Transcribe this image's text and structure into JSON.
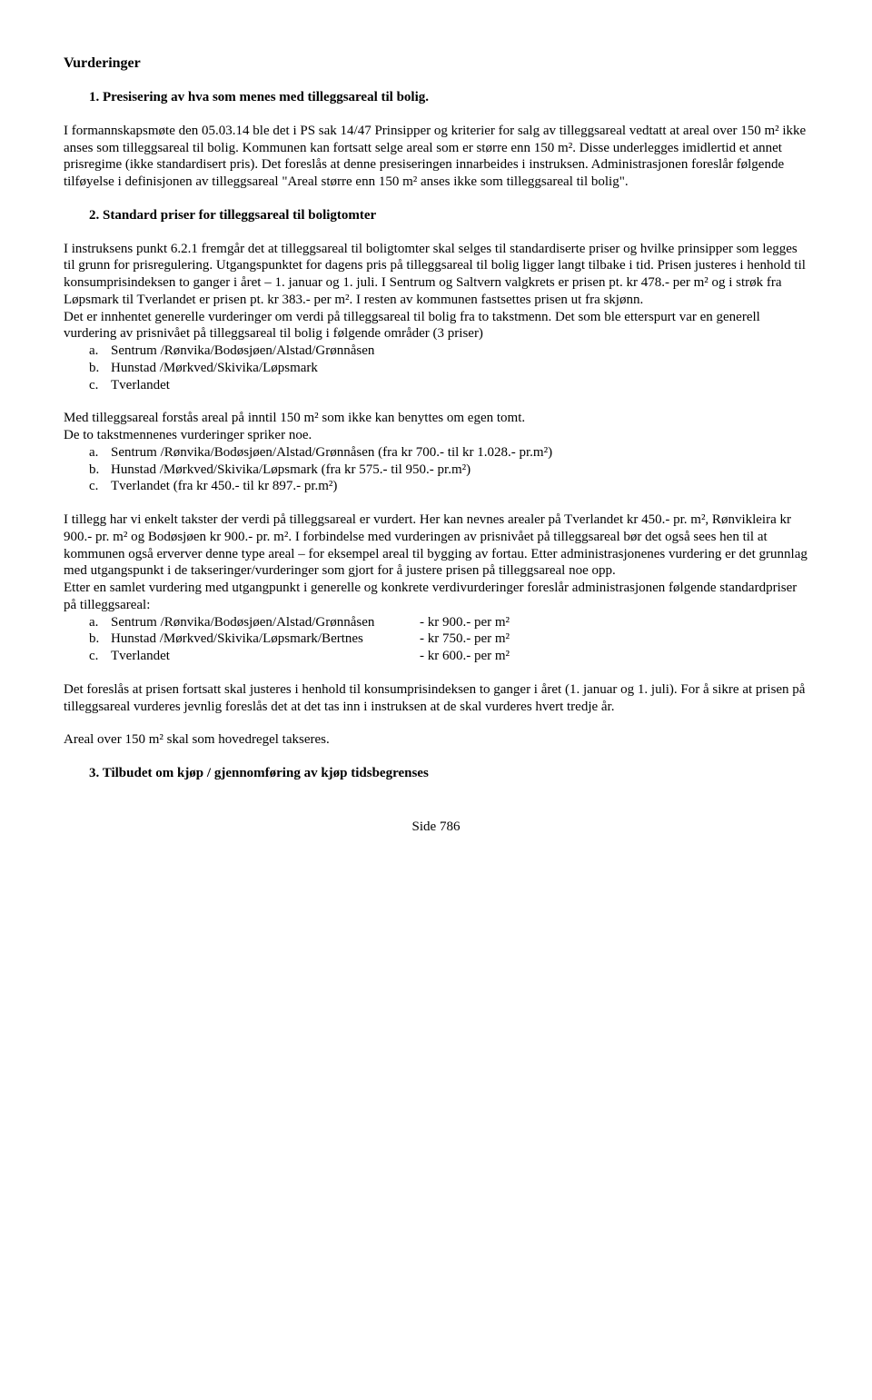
{
  "title": "Vurderinger",
  "section1": {
    "heading": "1. Presisering av hva som menes med tilleggsareal til bolig.",
    "para": "I formannskapsmøte den 05.03.14 ble det i PS sak 14/47 Prinsipper og kriterier for salg av tilleggsareal vedtatt at areal over 150 m² ikke anses som tilleggsareal til bolig. Kommunen kan fortsatt selge areal som er større enn 150 m². Disse underlegges imidlertid et annet prisregime (ikke standardisert pris). Det foreslås at denne presiseringen innarbeides i instruksen. Administrasjonen foreslår følgende tilføyelse i definisjonen av tilleggsareal \"Areal større enn 150 m² anses ikke som tilleggsareal til bolig\"."
  },
  "section2": {
    "heading": "2. Standard priser for tilleggsareal til boligtomter",
    "para1": "I instruksens punkt 6.2.1 fremgår det at tilleggsareal til boligtomter skal selges til standardiserte priser og hvilke prinsipper som legges til grunn for prisregulering. Utgangspunktet for dagens pris på tilleggsareal til bolig ligger langt tilbake i tid. Prisen justeres i henhold til konsumprisindeksen to ganger i året – 1. januar og 1. juli. I Sentrum og Saltvern valgkrets er prisen pt. kr 478.- per m² og i strøk fra Løpsmark til Tverlandet er prisen pt. kr 383.- per m². I resten av kommunen fastsettes prisen ut fra skjønn.",
    "para2": "Det er innhentet generelle vurderinger om verdi på tilleggsareal til bolig fra to takstmenn. Det som ble etterspurt var en generell vurdering av prisnivået på tilleggsareal til bolig i følgende områder (3 priser)",
    "listA": [
      {
        "m": "a.",
        "t": "Sentrum /Rønvika/Bodøsjøen/Alstad/Grønnåsen"
      },
      {
        "m": "b.",
        "t": "Hunstad /Mørkved/Skivika/Løpsmark"
      },
      {
        "m": "c.",
        "t": "Tverlandet"
      }
    ],
    "para3a": "Med tilleggsareal forstås areal på inntil 150 m² som ikke kan benyttes om egen tomt.",
    "para3b": "De to takstmennenes vurderinger spriker noe.",
    "listB": [
      {
        "m": "a.",
        "t": "Sentrum /Rønvika/Bodøsjøen/Alstad/Grønnåsen (fra kr 700.- til kr 1.028.- pr.m²)"
      },
      {
        "m": "b.",
        "t": "Hunstad /Mørkved/Skivika/Løpsmark (fra kr 575.- til 950.- pr.m²)"
      },
      {
        "m": "c.",
        "t": "Tverlandet (fra kr 450.- til kr 897.- pr.m²)"
      }
    ],
    "para4": "I tillegg har vi enkelt takster der verdi på tilleggsareal er vurdert. Her kan nevnes arealer på Tverlandet kr 450.- pr. m², Rønvikleira kr 900.- pr. m² og Bodøsjøen kr 900.- pr. m². I forbindelse med vurderingen av prisnivået på tilleggsareal bør det også sees hen til at kommunen også erverver denne type areal – for eksempel areal til bygging av fortau. Etter administrasjonenes vurdering er det grunnlag med utgangspunkt i de takseringer/vurderinger som gjort for å justere prisen på tilleggsareal noe opp.",
    "para5": "Etter en samlet vurdering med utgangpunkt i generelle og konkrete verdivurderinger foreslår administrasjonen følgende standardpriser på tilleggsareal:",
    "listC": [
      {
        "m": "a.",
        "t": "Sentrum /Rønvika/Bodøsjøen/Alstad/Grønnåsen",
        "p": "- kr 900.- per m²"
      },
      {
        "m": "b.",
        "t": "Hunstad /Mørkved/Skivika/Løpsmark/Bertnes",
        "p": "- kr 750.- per m²"
      },
      {
        "m": "c.",
        "t": "Tverlandet",
        "p": "- kr 600.- per m²"
      }
    ],
    "para6": "Det foreslås at prisen fortsatt skal justeres i henhold til konsumprisindeksen to ganger i året (1. januar og 1. juli). For å sikre at prisen på tilleggsareal vurderes jevnlig foreslås det at det tas inn i instruksen at de skal vurderes hvert tredje år.",
    "para7": "Areal over 150 m² skal som hovedregel takseres."
  },
  "section3": {
    "heading": "3. Tilbudet om kjøp / gjennomføring av kjøp tidsbegrenses"
  },
  "footer": "Side 786"
}
